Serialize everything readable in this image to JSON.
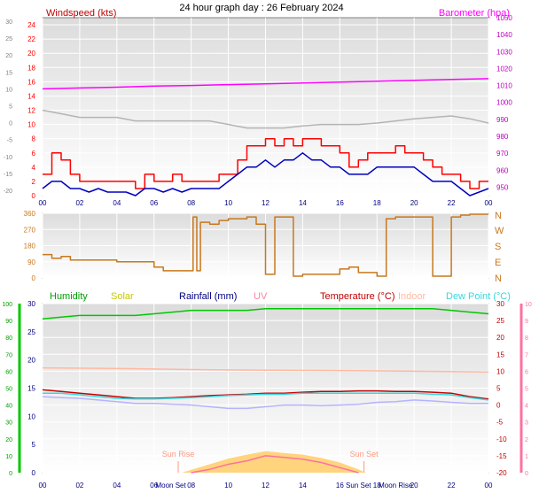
{
  "title": "24 hour graph day : 26 February 2024",
  "chart_data": [
    {
      "type": "line",
      "panel": "wind-barometer",
      "left_axis": {
        "label": "Windspeed (kts)",
        "ticks": [
          "0",
          "2",
          "4",
          "6",
          "8",
          "10",
          "12",
          "14",
          "16",
          "18",
          "20",
          "22",
          "24"
        ],
        "range": [
          0,
          25
        ]
      },
      "outer_left_axis": {
        "ticks": [
          "-20",
          "-15",
          "-10",
          "-5",
          "0",
          "5",
          "10",
          "15",
          "20",
          "25",
          "30"
        ]
      },
      "right_axis": {
        "label": "Barometer (hpa)",
        "ticks": [
          "950",
          "960",
          "970",
          "980",
          "990",
          "1000",
          "1010",
          "1020",
          "1030",
          "1040",
          "1050"
        ],
        "range": [
          945,
          1050
        ]
      },
      "x_ticks": [
        "00",
        "02",
        "04",
        "06",
        "08",
        "10",
        "12",
        "14",
        "16",
        "18",
        "20",
        "22",
        "00"
      ],
      "x_range_hours": [
        0,
        24
      ],
      "series": [
        {
          "key": "gust",
          "color": "#ff0000",
          "x": [
            0,
            0.5,
            1,
            1.5,
            2,
            2.5,
            3,
            3.5,
            4,
            4.5,
            5,
            5.5,
            6,
            6.5,
            7,
            7.5,
            8,
            8.5,
            9,
            9.5,
            10,
            10.5,
            11,
            11.5,
            12,
            12.5,
            13,
            13.5,
            14,
            14.5,
            15,
            15.5,
            16,
            16.5,
            17,
            17.5,
            18,
            18.5,
            19,
            19.5,
            20,
            20.5,
            21,
            21.5,
            22,
            22.5,
            23,
            23.5,
            24
          ],
          "values": [
            3,
            6,
            5,
            3,
            2,
            2,
            2,
            2,
            2,
            2,
            1,
            3,
            2,
            2,
            3,
            2,
            2,
            2,
            2,
            3,
            3,
            5,
            7,
            7,
            8,
            7,
            8,
            7,
            8,
            8,
            7,
            7,
            6,
            4,
            5,
            6,
            6,
            6,
            7,
            6,
            6,
            5,
            4,
            3,
            3,
            2,
            1,
            2,
            2
          ]
        },
        {
          "key": "speed",
          "color": "#0000c0",
          "x": [
            0,
            0.5,
            1,
            1.5,
            2,
            2.5,
            3,
            3.5,
            4,
            4.5,
            5,
            5.5,
            6,
            6.5,
            7,
            7.5,
            8,
            8.5,
            9,
            9.5,
            10,
            10.5,
            11,
            11.5,
            12,
            12.5,
            13,
            13.5,
            14,
            14.5,
            15,
            15.5,
            16,
            16.5,
            17,
            17.5,
            18,
            18.5,
            19,
            19.5,
            20,
            20.5,
            21,
            21.5,
            22,
            22.5,
            23,
            23.5,
            24
          ],
          "values": [
            1,
            2,
            2,
            1,
            1,
            0.5,
            1,
            0.5,
            0.5,
            0.5,
            0,
            1,
            1,
            0.5,
            1,
            0.5,
            1,
            1,
            1,
            1,
            2,
            3,
            4,
            4,
            5,
            4,
            5,
            5,
            6,
            5,
            5,
            4,
            4,
            3,
            3,
            3,
            4,
            4,
            4,
            4,
            4,
            3,
            2,
            2,
            2,
            1,
            0,
            0.5,
            1
          ]
        },
        {
          "key": "outdoor-temp-ghost",
          "color": "#b4b4b4",
          "x": [
            0,
            1,
            2,
            3,
            4,
            5,
            6,
            7,
            8,
            9,
            10,
            11,
            12,
            13,
            14,
            15,
            16,
            17,
            18,
            19,
            20,
            21,
            22,
            23,
            24
          ],
          "values": [
            12,
            11.5,
            11,
            11,
            11,
            10.5,
            10.5,
            10.5,
            10.5,
            10.5,
            10,
            9.5,
            9.5,
            9.5,
            9.8,
            10,
            10,
            10,
            10.2,
            10.5,
            10.8,
            11,
            11.2,
            10.8,
            10.2
          ]
        },
        {
          "key": "barometer",
          "color": "#ff00ff",
          "axis": "right",
          "x": [
            0,
            2,
            4,
            6,
            8,
            10,
            12,
            14,
            16,
            18,
            20,
            22,
            24
          ],
          "values": [
            1008,
            1008.5,
            1009,
            1009.6,
            1010,
            1010.5,
            1011,
            1011.5,
            1012,
            1012.5,
            1013,
            1013.6,
            1014
          ]
        }
      ]
    },
    {
      "type": "line",
      "panel": "wind-direction",
      "left_axis": {
        "ticks": [
          "0",
          "90",
          "180",
          "270",
          "360"
        ],
        "range": [
          0,
          360
        ]
      },
      "right_axis": {
        "ticks": [
          "N",
          "E",
          "S",
          "W",
          "N"
        ]
      },
      "x_range_hours": [
        0,
        24
      ],
      "series": [
        {
          "key": "direction",
          "color": "#c8781e",
          "x": [
            0,
            0.5,
            1,
            1.5,
            2,
            3,
            4,
            5,
            6,
            6.5,
            7,
            8,
            8.1,
            8.3,
            8.5,
            9,
            9.5,
            10,
            11,
            11.5,
            12,
            12.5,
            13,
            13.5,
            14,
            15,
            16,
            16.5,
            17,
            18,
            18.5,
            19,
            20,
            21,
            22,
            22.5,
            23,
            24
          ],
          "values": [
            130,
            110,
            120,
            100,
            100,
            100,
            90,
            90,
            60,
            40,
            40,
            40,
            340,
            40,
            310,
            300,
            320,
            330,
            340,
            300,
            20,
            340,
            340,
            10,
            20,
            20,
            50,
            60,
            30,
            10,
            330,
            340,
            340,
            10,
            340,
            350,
            355,
            355
          ]
        }
      ]
    },
    {
      "type": "line",
      "panel": "humidity-temperature",
      "legend": [
        "Humidity",
        "Solar",
        "Rainfall (mm)",
        "UV",
        "Temperature (°C)",
        "Indoor",
        "Dew Point (°C)"
      ],
      "humidity_axis": {
        "ticks": [
          "0",
          "10",
          "20",
          "30",
          "40",
          "50",
          "60",
          "70",
          "80",
          "90",
          "100"
        ],
        "range": [
          0,
          100
        ]
      },
      "left_axis": {
        "ticks": [
          "0",
          "5",
          "10",
          "15",
          "20",
          "25",
          "30"
        ],
        "range": [
          0,
          30
        ]
      },
      "right_axis": {
        "ticks": [
          "-20",
          "-15",
          "-10",
          "-5",
          "0",
          "5",
          "10",
          "15",
          "20",
          "25",
          "30"
        ],
        "range": [
          -20,
          30
        ]
      },
      "uv_axis": {
        "ticks": [
          "0",
          "1",
          "2",
          "3",
          "4",
          "5",
          "6",
          "7",
          "8",
          "9",
          "10"
        ],
        "range": [
          0,
          10
        ]
      },
      "x_ticks": [
        "00",
        "02",
        "04",
        "06",
        "08",
        "10",
        "12",
        "14",
        "16",
        "18",
        "20",
        "22",
        "00"
      ],
      "x_range_hours": [
        0,
        24
      ],
      "markers": [
        {
          "label": "Sun Rise",
          "hour": 7.3
        },
        {
          "label": "Sun Set",
          "hour": 17.3
        }
      ],
      "x_events": [
        "Moon Set",
        "Sun Set",
        "Moon Rise"
      ],
      "x_event_hours": [
        6.9,
        17.0,
        19.0
      ],
      "series": [
        {
          "key": "humidity",
          "color": "#00c800",
          "axis": "humidity",
          "x": [
            0,
            1,
            2,
            3,
            4,
            5,
            6,
            7,
            8,
            9,
            10,
            11,
            12,
            13,
            14,
            15,
            16,
            17,
            18,
            19,
            20,
            21,
            22,
            23,
            24
          ],
          "values": [
            91,
            92,
            93,
            93,
            93,
            93,
            94,
            95,
            96,
            96,
            96,
            96,
            97,
            97,
            97,
            97,
            97,
            97,
            97,
            97,
            97,
            97,
            96,
            95,
            94
          ]
        },
        {
          "key": "indoor",
          "color": "#ffb9a0",
          "axis": "right",
          "x": [
            0,
            4,
            8,
            12,
            16,
            20,
            24
          ],
          "values": [
            11,
            10.8,
            10.5,
            10.3,
            10.2,
            10,
            9.8
          ]
        },
        {
          "key": "temperature",
          "color": "#c80000",
          "axis": "right",
          "x": [
            0,
            1,
            2,
            3,
            4,
            5,
            6,
            7,
            8,
            9,
            10,
            11,
            12,
            13,
            14,
            15,
            16,
            17,
            18,
            19,
            20,
            21,
            22,
            23,
            24
          ],
          "values": [
            4.5,
            4,
            3.5,
            3,
            2.5,
            2,
            2,
            2.2,
            2.5,
            2.8,
            3,
            3.2,
            3.5,
            3.5,
            3.8,
            4,
            4,
            4.2,
            4.2,
            4,
            4,
            3.8,
            3.5,
            2.5,
            1.8
          ]
        },
        {
          "key": "dewpoint",
          "color": "#38d8e0",
          "axis": "right",
          "x": [
            0,
            1,
            2,
            3,
            4,
            5,
            6,
            7,
            8,
            9,
            10,
            11,
            12,
            13,
            14,
            15,
            16,
            17,
            18,
            19,
            20,
            21,
            22,
            23,
            24
          ],
          "values": [
            3.5,
            3.5,
            3,
            2.5,
            2,
            1.8,
            1.8,
            2,
            2.2,
            2.5,
            2.8,
            3,
            3.2,
            3.2,
            3.5,
            3.5,
            3.5,
            3.5,
            3.5,
            3.5,
            3.5,
            3.2,
            3,
            2.2,
            1.5
          ]
        },
        {
          "key": "apparent",
          "color": "#b4b4ff",
          "axis": "right",
          "x": [
            0,
            1,
            2,
            3,
            4,
            5,
            6,
            7,
            8,
            9,
            10,
            11,
            12,
            13,
            14,
            15,
            16,
            17,
            18,
            19,
            20,
            21,
            22,
            23,
            24
          ],
          "values": [
            2.5,
            2.2,
            2,
            1.5,
            1,
            0.5,
            0.5,
            0.2,
            0,
            -0.5,
            -1,
            -1,
            -0.5,
            0,
            0,
            -0.2,
            0,
            0.2,
            0.8,
            1,
            1.5,
            1.2,
            0.8,
            0.5,
            0.5
          ]
        },
        {
          "key": "solar",
          "color": "#ffcc66",
          "axis": "left",
          "x": [
            7.5,
            8,
            9,
            10,
            11,
            12,
            13,
            14,
            15,
            16,
            17,
            17.4
          ],
          "values": [
            0,
            0.5,
            1.5,
            2.5,
            3.2,
            3.8,
            3.5,
            3.2,
            2.6,
            1.8,
            0.6,
            0
          ]
        },
        {
          "key": "uv",
          "color": "#ff70a0",
          "axis": "uv",
          "x": [
            8,
            9,
            10,
            11,
            12,
            13,
            14,
            15,
            16,
            17
          ],
          "values": [
            0,
            0.2,
            0.5,
            0.7,
            1,
            0.9,
            0.8,
            0.6,
            0.3,
            0
          ]
        }
      ]
    }
  ]
}
